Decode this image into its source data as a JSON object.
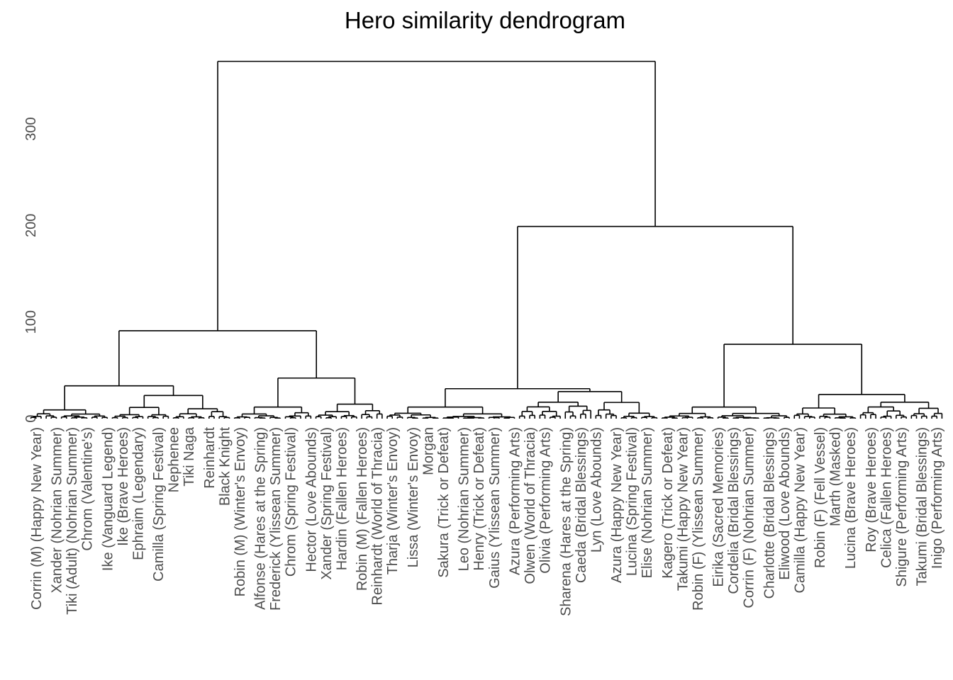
{
  "chart_data": {
    "type": "dendrogram",
    "title": "Hero similarity dendrogram",
    "xlabel": "",
    "ylabel": "",
    "ylim": [
      0,
      380
    ],
    "yticks": [
      0,
      100,
      200,
      300
    ],
    "grid": false,
    "legend": "none",
    "top_merges": [
      {
        "name": "root",
        "height": 370,
        "children": [
          "left-cluster",
          "right-cluster"
        ]
      },
      {
        "name": "right-cluster",
        "height": 199,
        "children": [
          "right-a",
          "right-b"
        ]
      },
      {
        "name": "left-cluster",
        "height": 91,
        "children": [
          "left-a",
          "left-b"
        ]
      },
      {
        "name": "right-b",
        "height": 77,
        "children": [
          "right-b1",
          "right-b2"
        ]
      },
      {
        "name": "left-b",
        "height": 42,
        "children": [
          "left-b1",
          "left-b2"
        ]
      },
      {
        "name": "left-a",
        "height": 34,
        "children": [
          "left-a1",
          "left-a2"
        ]
      },
      {
        "name": "right-a",
        "height": 31,
        "children": [
          "right-a1",
          "right-a2"
        ]
      },
      {
        "name": "right-b2",
        "height": 25,
        "children": [
          "right-b2a",
          "right-b2b"
        ]
      }
    ],
    "leaf_count": 180,
    "labels": [
      "Corrin (M) (Happy New Year)",
      "Xander (Nohrian Summer)",
      "Tiki (Adult) (Nohrian Summer)",
      "Chrom (Valentine's)",
      "Ike (Vanguard Legend)",
      "Ike (Brave Heroes)",
      "Ephraim (Legendary)",
      "Camilla (Spring Festival)",
      "Nephenee",
      "Tiki Naga",
      "Reinhardt",
      "Black Knight",
      "Robin (M) (Winter's Envoy)",
      "Alfonse (Hares at the Spring)",
      "Frederick (Ylissean Summer)",
      "Chrom (Spring Festival)",
      "Hector (Love Abounds)",
      "Xander (Spring Festival)",
      "Hardin (Fallen Heroes)",
      "Robin (M) (Fallen Heroes)",
      "Reinhardt (World of Thracia)",
      "Tharja (Winter's Envoy)",
      "Lissa (Winter's Envoy)",
      "Morgan",
      "Sakura (Trick or Defeat)",
      "Leo (Nohrian Summer)",
      "Henry (Trick or Defeat)",
      "Gaius (Ylissean Summer)",
      "Azura (Performing Arts)",
      "Olwen (World of Thracia)",
      "Olivia (Performing Arts)",
      "Sharena (Hares at the Spring)",
      "Caeda (Bridal Blessings)",
      "Lyn (Love Abounds)",
      "Azura (Happy New Year)",
      "Lucina (Spring Festival)",
      "Elise (Nohrian Summer)",
      "Kagero (Trick or Defeat)",
      "Takumi (Happy New Year)",
      "Robin (F) (Ylissean Summer)",
      "Eirika (Sacred Memories)",
      "Cordelia (Bridal Blessings)",
      "Corrin (F) (Nohrian Summer)",
      "Charlotte (Bridal Blessings)",
      "Eliwood (Love Abounds)",
      "Camilla (Happy New Year)",
      "Robin (F) (Fell Vessel)",
      "Marth (Masked)",
      "Lucina (Brave Heroes)",
      "Roy (Brave Heroes)",
      "Celica (Fallen Heroes)",
      "Shigure (Performing Arts)",
      "Takumi (Bridal Blessings)",
      "Inigo (Performing Arts)"
    ]
  }
}
